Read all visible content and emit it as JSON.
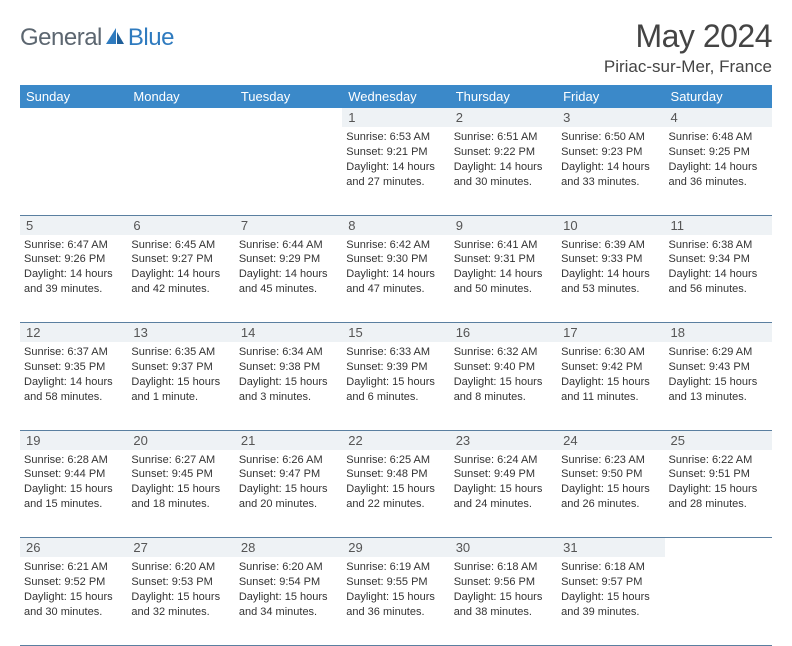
{
  "brand": {
    "word1": "General",
    "word2": "Blue"
  },
  "title": "May 2024",
  "location": "Piriac-sur-Mer, France",
  "colors": {
    "header_bg": "#3b89c9",
    "daynum_bg": "#eef2f5",
    "rule": "#5a7fa0",
    "brand_gray": "#5c6670",
    "brand_blue": "#2f7bbf"
  },
  "day_headers": [
    "Sunday",
    "Monday",
    "Tuesday",
    "Wednesday",
    "Thursday",
    "Friday",
    "Saturday"
  ],
  "weeks": [
    {
      "nums": [
        "",
        "",
        "",
        "1",
        "2",
        "3",
        "4"
      ],
      "cells": [
        [],
        [],
        [],
        [
          "Sunrise: 6:53 AM",
          "Sunset: 9:21 PM",
          "Daylight: 14 hours and 27 minutes."
        ],
        [
          "Sunrise: 6:51 AM",
          "Sunset: 9:22 PM",
          "Daylight: 14 hours and 30 minutes."
        ],
        [
          "Sunrise: 6:50 AM",
          "Sunset: 9:23 PM",
          "Daylight: 14 hours and 33 minutes."
        ],
        [
          "Sunrise: 6:48 AM",
          "Sunset: 9:25 PM",
          "Daylight: 14 hours and 36 minutes."
        ]
      ]
    },
    {
      "nums": [
        "5",
        "6",
        "7",
        "8",
        "9",
        "10",
        "11"
      ],
      "cells": [
        [
          "Sunrise: 6:47 AM",
          "Sunset: 9:26 PM",
          "Daylight: 14 hours and 39 minutes."
        ],
        [
          "Sunrise: 6:45 AM",
          "Sunset: 9:27 PM",
          "Daylight: 14 hours and 42 minutes."
        ],
        [
          "Sunrise: 6:44 AM",
          "Sunset: 9:29 PM",
          "Daylight: 14 hours and 45 minutes."
        ],
        [
          "Sunrise: 6:42 AM",
          "Sunset: 9:30 PM",
          "Daylight: 14 hours and 47 minutes."
        ],
        [
          "Sunrise: 6:41 AM",
          "Sunset: 9:31 PM",
          "Daylight: 14 hours and 50 minutes."
        ],
        [
          "Sunrise: 6:39 AM",
          "Sunset: 9:33 PM",
          "Daylight: 14 hours and 53 minutes."
        ],
        [
          "Sunrise: 6:38 AM",
          "Sunset: 9:34 PM",
          "Daylight: 14 hours and 56 minutes."
        ]
      ]
    },
    {
      "nums": [
        "12",
        "13",
        "14",
        "15",
        "16",
        "17",
        "18"
      ],
      "cells": [
        [
          "Sunrise: 6:37 AM",
          "Sunset: 9:35 PM",
          "Daylight: 14 hours and 58 minutes."
        ],
        [
          "Sunrise: 6:35 AM",
          "Sunset: 9:37 PM",
          "Daylight: 15 hours and 1 minute."
        ],
        [
          "Sunrise: 6:34 AM",
          "Sunset: 9:38 PM",
          "Daylight: 15 hours and 3 minutes."
        ],
        [
          "Sunrise: 6:33 AM",
          "Sunset: 9:39 PM",
          "Daylight: 15 hours and 6 minutes."
        ],
        [
          "Sunrise: 6:32 AM",
          "Sunset: 9:40 PM",
          "Daylight: 15 hours and 8 minutes."
        ],
        [
          "Sunrise: 6:30 AM",
          "Sunset: 9:42 PM",
          "Daylight: 15 hours and 11 minutes."
        ],
        [
          "Sunrise: 6:29 AM",
          "Sunset: 9:43 PM",
          "Daylight: 15 hours and 13 minutes."
        ]
      ]
    },
    {
      "nums": [
        "19",
        "20",
        "21",
        "22",
        "23",
        "24",
        "25"
      ],
      "cells": [
        [
          "Sunrise: 6:28 AM",
          "Sunset: 9:44 PM",
          "Daylight: 15 hours and 15 minutes."
        ],
        [
          "Sunrise: 6:27 AM",
          "Sunset: 9:45 PM",
          "Daylight: 15 hours and 18 minutes."
        ],
        [
          "Sunrise: 6:26 AM",
          "Sunset: 9:47 PM",
          "Daylight: 15 hours and 20 minutes."
        ],
        [
          "Sunrise: 6:25 AM",
          "Sunset: 9:48 PM",
          "Daylight: 15 hours and 22 minutes."
        ],
        [
          "Sunrise: 6:24 AM",
          "Sunset: 9:49 PM",
          "Daylight: 15 hours and 24 minutes."
        ],
        [
          "Sunrise: 6:23 AM",
          "Sunset: 9:50 PM",
          "Daylight: 15 hours and 26 minutes."
        ],
        [
          "Sunrise: 6:22 AM",
          "Sunset: 9:51 PM",
          "Daylight: 15 hours and 28 minutes."
        ]
      ]
    },
    {
      "nums": [
        "26",
        "27",
        "28",
        "29",
        "30",
        "31",
        ""
      ],
      "cells": [
        [
          "Sunrise: 6:21 AM",
          "Sunset: 9:52 PM",
          "Daylight: 15 hours and 30 minutes."
        ],
        [
          "Sunrise: 6:20 AM",
          "Sunset: 9:53 PM",
          "Daylight: 15 hours and 32 minutes."
        ],
        [
          "Sunrise: 6:20 AM",
          "Sunset: 9:54 PM",
          "Daylight: 15 hours and 34 minutes."
        ],
        [
          "Sunrise: 6:19 AM",
          "Sunset: 9:55 PM",
          "Daylight: 15 hours and 36 minutes."
        ],
        [
          "Sunrise: 6:18 AM",
          "Sunset: 9:56 PM",
          "Daylight: 15 hours and 38 minutes."
        ],
        [
          "Sunrise: 6:18 AM",
          "Sunset: 9:57 PM",
          "Daylight: 15 hours and 39 minutes."
        ],
        []
      ]
    }
  ]
}
